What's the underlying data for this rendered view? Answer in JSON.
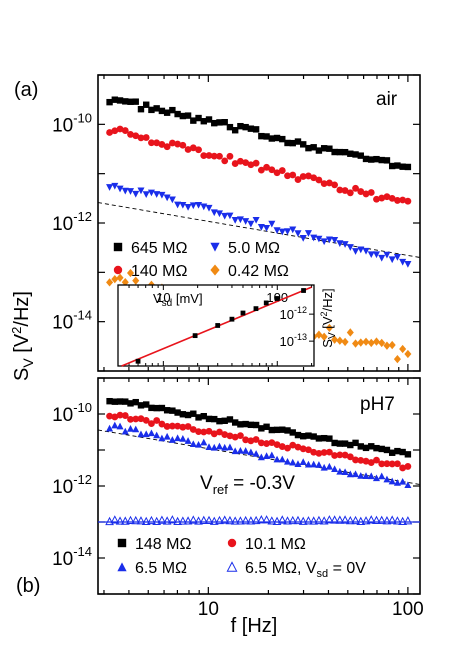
{
  "figure": {
    "x_axis_label": "f [Hz]",
    "y_axis_label_base": "S",
    "y_axis_label_sub": "V",
    "y_axis_label_units_a": " [V",
    "y_axis_label_units_b": "2",
    "y_axis_label_units_c": "/Hz]"
  },
  "chart_data": [
    {
      "panel": "a",
      "panel_label": "(a)",
      "condition_label": "air",
      "type": "scatter",
      "x_scale": "log",
      "y_scale": "log",
      "xlim": [
        2.8,
        115
      ],
      "ylim": [
        1e-15,
        1e-09
      ],
      "x_ticks": [
        10,
        100
      ],
      "y_tick_labels": [
        {
          "value": 1e-10,
          "base": "10",
          "exp": "-10"
        },
        {
          "value": 1e-12,
          "base": "10",
          "exp": "-12"
        },
        {
          "value": 1e-14,
          "base": "10",
          "exp": "-14"
        }
      ],
      "series": [
        {
          "name": "645 MΩ",
          "marker": "square",
          "color": "#000000",
          "fill": true,
          "y_start": 3.3e-10,
          "y_end": 1.3e-11,
          "noise": 0.14
        },
        {
          "name": "140 MΩ",
          "marker": "circle",
          "color": "#e8141c",
          "fill": true,
          "y_start": 8e-11,
          "y_end": 2.4e-12,
          "noise": 0.14
        },
        {
          "name": "5.0 MΩ",
          "marker": "triangle-down",
          "color": "#1a2eea",
          "fill": true,
          "y_start": 6.2e-12,
          "y_end": 1.6e-13,
          "noise": 0.14
        },
        {
          "name": "0.42 MΩ",
          "marker": "diamond",
          "color": "#f08a14",
          "fill": true,
          "y_start": 9e-14,
          "y_end": 2.2e-15,
          "noise": 0.32
        }
      ],
      "guide_line": {
        "style": "dashed",
        "color": "#000000",
        "y_at_x_start": 2.6e-12,
        "y_at_x_end": 2e-13
      },
      "inset": {
        "x_scale": "log",
        "y_scale": "log",
        "x_label_base": "V",
        "x_label_sub": "sd",
        "x_label_units": " [mV]",
        "y_label_base": "S",
        "y_label_sub": "V",
        "y_label_units_a": " [V",
        "y_label_units_b": "2",
        "y_label_units_c": "/Hz]",
        "xlim": [
          4,
          210
        ],
        "ylim": [
          1.2e-14,
          1.2e-11
        ],
        "x_ticks": [
          10,
          100
        ],
        "y_tick_labels": [
          {
            "value": 1e-12,
            "base": "10",
            "exp": "-12"
          },
          {
            "value": 1e-13,
            "base": "10",
            "exp": "-13"
          }
        ],
        "points": [
          {
            "x": 6,
            "y": 1.8e-14
          },
          {
            "x": 19,
            "y": 1.6e-13
          },
          {
            "x": 30,
            "y": 3.8e-13
          },
          {
            "x": 40,
            "y": 6.5e-13
          },
          {
            "x": 50,
            "y": 1.1e-12
          },
          {
            "x": 65,
            "y": 1.6e-12
          },
          {
            "x": 80,
            "y": 2.6e-12
          },
          {
            "x": 100,
            "y": 3.8e-12
          },
          {
            "x": 170,
            "y": 7.5e-12
          }
        ],
        "fit_line": {
          "color": "#e8141c",
          "x": [
            4.3,
            200
          ],
          "y": [
            1.2e-14,
            1e-11
          ]
        }
      }
    },
    {
      "panel": "b",
      "panel_label": "(b)",
      "condition_label": "pH7",
      "annotation_base": "V",
      "annotation_sub": "ref",
      "annotation_value": " = -0.3V",
      "type": "scatter",
      "x_scale": "log",
      "y_scale": "log",
      "xlim": [
        2.8,
        115
      ],
      "ylim": [
        1e-15,
        1e-09
      ],
      "x_ticks": [
        10,
        100
      ],
      "x_tick_labels": [
        "10",
        "100"
      ],
      "y_tick_labels": [
        {
          "value": 1e-10,
          "base": "10",
          "exp": "-10"
        },
        {
          "value": 1e-12,
          "base": "10",
          "exp": "-12"
        },
        {
          "value": 1e-14,
          "base": "10",
          "exp": "-14"
        }
      ],
      "series": [
        {
          "name": "148 MΩ",
          "marker": "square",
          "color": "#000000",
          "fill": true,
          "y_start": 2.6e-10,
          "y_end": 7.5e-12,
          "noise": 0.12
        },
        {
          "name": "10.1 MΩ",
          "marker": "circle",
          "color": "#e8141c",
          "fill": true,
          "y_start": 1e-10,
          "y_end": 3.2e-12,
          "noise": 0.12
        },
        {
          "name": "6.5 MΩ",
          "marker": "triangle-up",
          "color": "#1a2eea",
          "fill": true,
          "y_start": 4.6e-11,
          "y_end": 1.2e-12,
          "noise": 0.12
        },
        {
          "name": "6.5 MΩ, V",
          "name_sub": "sd",
          "name_suffix": " = 0V",
          "marker": "triangle-up",
          "color": "#1a2eea",
          "fill": false,
          "y_start": 1.1e-13,
          "y_end": 1.1e-13,
          "noise": 0.05
        }
      ],
      "guide_line": {
        "style": "dashed",
        "color": "#000000",
        "y_at_x_start": 3.6e-11,
        "y_at_x_end": 1.1e-12
      },
      "baseline": {
        "color": "#1a2eea",
        "y": 1e-13
      }
    }
  ]
}
